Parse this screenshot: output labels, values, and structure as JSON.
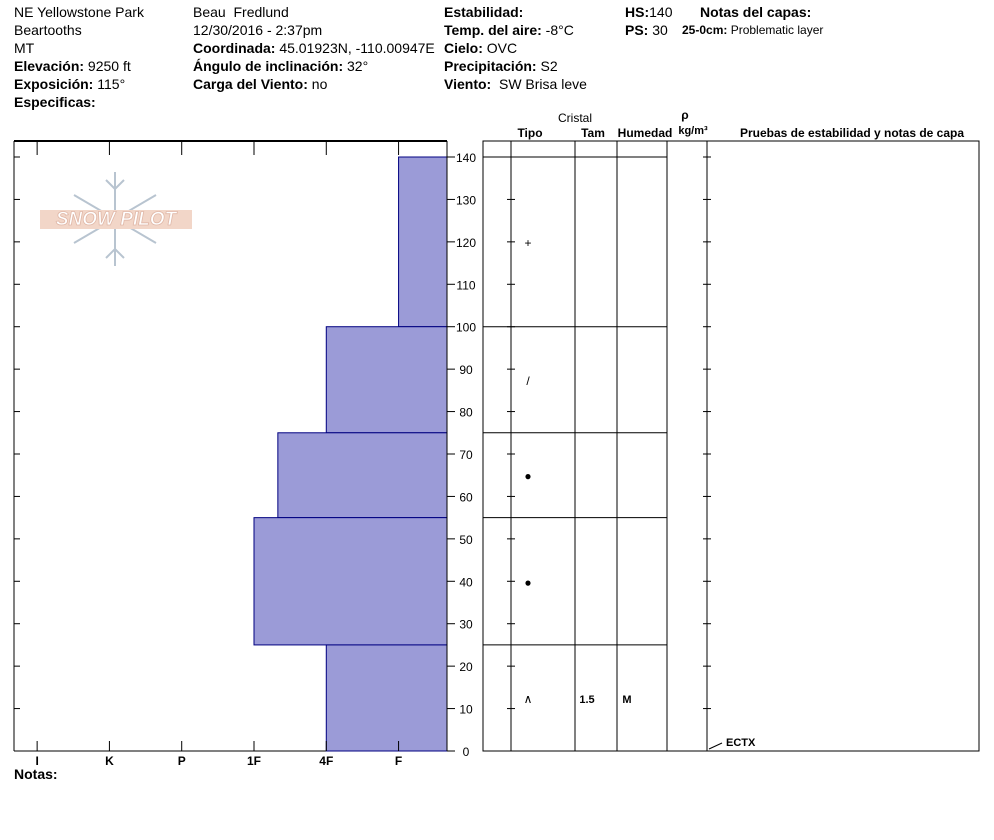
{
  "site": {
    "name": "NE Yellowstone Park",
    "range": "Beartooths",
    "state": "MT",
    "elevation": {
      "label": "Elevación:",
      "value": "9250 ft"
    },
    "aspect": {
      "label": "Exposición:",
      "value": "115°"
    },
    "specifics": {
      "label": "Especificas:"
    }
  },
  "observation": {
    "observer": "Beau  Fredlund",
    "date": "12/30/2016 - 2:37pm",
    "coordinates": {
      "label": "Coordinada:",
      "value": "45.01923N, -110.00947E"
    },
    "slope": {
      "label": "Ángulo de inclinación:",
      "value": "32°"
    },
    "wind_load": {
      "label": "Carga del Viento:",
      "value": "no"
    }
  },
  "conditions": {
    "stability": {
      "label": "Estabilidad:"
    },
    "air_temp": {
      "label": "Temp. del aire:",
      "value": "-8°C"
    },
    "sky": {
      "label": "Cielo:",
      "value": "OVC"
    },
    "precipitation": {
      "label": "Precipitación:",
      "value": "S2"
    },
    "wind": {
      "label": "Viento:",
      "value": "SW Brisa leve"
    }
  },
  "snowpack": {
    "hs": {
      "label": "HS:",
      "value": "140"
    },
    "ps": {
      "label": "PS:",
      "value": "30"
    },
    "layer_notes": {
      "label": "Notas del capas:",
      "items": [
        {
          "range": "25-0cm:",
          "text": "Problematic layer"
        }
      ]
    }
  },
  "logo": "SNOW PILOT",
  "profile": {
    "depth_lim": [
      0,
      140
    ],
    "depth_ticks": [
      0,
      10,
      20,
      30,
      40,
      50,
      60,
      70,
      80,
      90,
      100,
      110,
      120,
      130,
      140
    ],
    "hardness_lim": [
      0.68,
      6.67
    ],
    "hardness_ticks": [
      {
        "value": 1,
        "label": "I"
      },
      {
        "value": 2,
        "label": "K"
      },
      {
        "value": 3,
        "label": "P"
      },
      {
        "value": 4,
        "label": "1F"
      },
      {
        "value": 5,
        "label": "4F"
      },
      {
        "value": 6,
        "label": "F"
      }
    ],
    "color": "#9b9bd7",
    "headers": {
      "crystal": "Cristal",
      "type": "Tipo",
      "size": "Tam",
      "moisture": "Humedad",
      "density": "ρ",
      "density_unit": "kg/m³",
      "tests": "Pruebas de estabilidad y notas de capa"
    },
    "layers": [
      {
        "top": 140,
        "bottom": 100,
        "hardness": 6,
        "grain": "+"
      },
      {
        "top": 100,
        "bottom": 75,
        "hardness": 5,
        "grain": "/"
      },
      {
        "top": 75,
        "bottom": 55,
        "hardness": 4.33,
        "grain": "●"
      },
      {
        "top": 55,
        "bottom": 25,
        "hardness": 4,
        "grain": "●"
      },
      {
        "top": 25,
        "bottom": 0,
        "hardness": 5,
        "grain": "∧",
        "size": "1.5",
        "moisture": "M"
      }
    ],
    "tests": [
      {
        "depth": 0,
        "label": "ECTX"
      }
    ],
    "notes_label": "Notas:"
  }
}
